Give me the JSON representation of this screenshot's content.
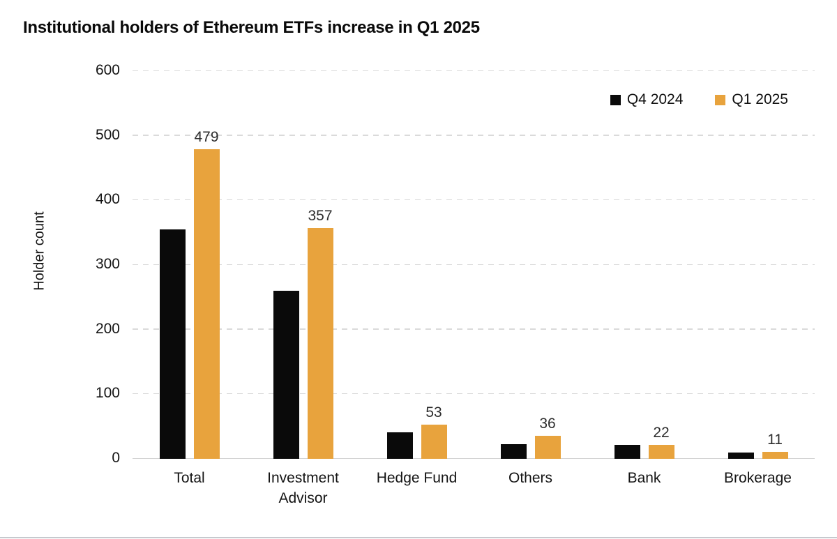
{
  "title": "Institutional holders of Ethereum ETFs increase in Q1 2025",
  "chart_data": {
    "type": "bar",
    "title": "Institutional holders of Ethereum ETFs increase in Q1 2025",
    "xlabel": "",
    "ylabel": "Holder count",
    "categories": [
      "Total",
      "Investment Advisor",
      "Hedge Fund",
      "Others",
      "Bank",
      "Brokerage"
    ],
    "series": [
      {
        "name": "Q4 2024",
        "color": "#0a0a0a",
        "values": [
          355,
          260,
          41,
          23,
          22,
          10
        ],
        "values_estimated": true,
        "value_labels_shown": false
      },
      {
        "name": "Q1 2025",
        "color": "#E8A33D",
        "values": [
          479,
          357,
          53,
          36,
          22,
          11
        ],
        "values_estimated": false,
        "value_labels_shown": true
      }
    ],
    "ylim": [
      0,
      600
    ],
    "yticks": [
      0,
      100,
      200,
      300,
      400,
      500,
      600
    ],
    "grid": "horizontal-dashed",
    "legend_position": "top-right"
  }
}
